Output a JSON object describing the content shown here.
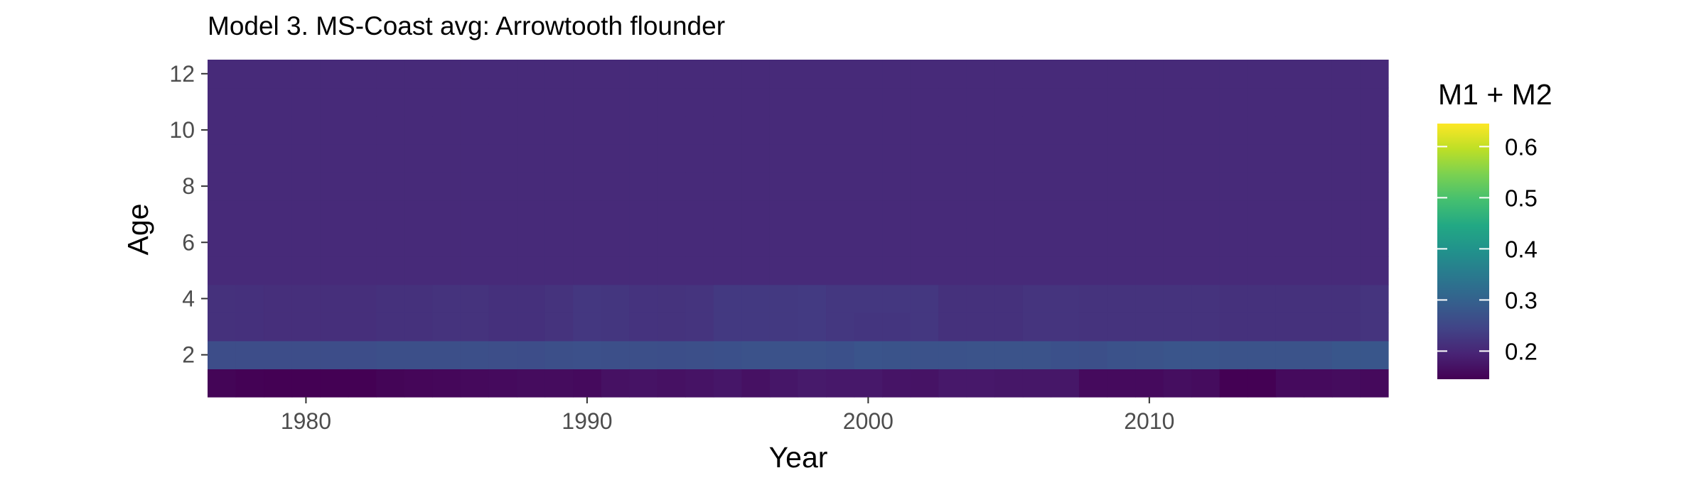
{
  "chart_data": {
    "type": "heatmap",
    "title": "Model 3. MS-Coast avg: Arrowtooth flounder",
    "xlabel": "Year",
    "ylabel": "Age",
    "x": [
      1977,
      1978,
      1979,
      1980,
      1981,
      1982,
      1983,
      1984,
      1985,
      1986,
      1987,
      1988,
      1989,
      1990,
      1991,
      1992,
      1993,
      1994,
      1995,
      1996,
      1997,
      1998,
      1999,
      2000,
      2001,
      2002,
      2003,
      2004,
      2005,
      2006,
      2007,
      2008,
      2009,
      2010,
      2011,
      2012,
      2013,
      2014,
      2015,
      2016,
      2017,
      2018
    ],
    "y": [
      1,
      2,
      3,
      4,
      5,
      6,
      7,
      8,
      9,
      10,
      11,
      12
    ],
    "xlim": [
      1976.5,
      2018.5
    ],
    "ylim": [
      0.5,
      12.5
    ],
    "x_ticks": [
      1980,
      1990,
      2000,
      2010
    ],
    "x_tick_labels": [
      "1980",
      "1990",
      "2000",
      "2010"
    ],
    "y_ticks": [
      2,
      4,
      6,
      8,
      10,
      12
    ],
    "y_tick_labels": [
      "2",
      "4",
      "6",
      "8",
      "10",
      "12"
    ],
    "age1": [
      0.15,
      0.147,
      0.143,
      0.145,
      0.142,
      0.143,
      0.15,
      0.152,
      0.154,
      0.157,
      0.158,
      0.16,
      0.16,
      0.158,
      0.168,
      0.17,
      0.168,
      0.17,
      0.175,
      0.168,
      0.175,
      0.18,
      0.178,
      0.178,
      0.172,
      0.17,
      0.178,
      0.178,
      0.176,
      0.176,
      0.176,
      0.158,
      0.158,
      0.158,
      0.163,
      0.16,
      0.145,
      0.145,
      0.158,
      0.158,
      0.16,
      0.157
    ],
    "age2": [
      0.262,
      0.262,
      0.262,
      0.262,
      0.262,
      0.262,
      0.265,
      0.265,
      0.265,
      0.265,
      0.263,
      0.262,
      0.265,
      0.267,
      0.265,
      0.265,
      0.264,
      0.265,
      0.268,
      0.27,
      0.27,
      0.27,
      0.268,
      0.275,
      0.273,
      0.27,
      0.27,
      0.272,
      0.272,
      0.272,
      0.268,
      0.265,
      0.27,
      0.272,
      0.276,
      0.276,
      0.272,
      0.272,
      0.272,
      0.272,
      0.278,
      0.278
    ],
    "age3": [
      0.215,
      0.214,
      0.212,
      0.212,
      0.212,
      0.212,
      0.215,
      0.215,
      0.218,
      0.218,
      0.214,
      0.214,
      0.218,
      0.225,
      0.223,
      0.219,
      0.218,
      0.22,
      0.228,
      0.228,
      0.228,
      0.23,
      0.225,
      0.222,
      0.222,
      0.225,
      0.215,
      0.215,
      0.215,
      0.22,
      0.22,
      0.218,
      0.218,
      0.218,
      0.218,
      0.218,
      0.215,
      0.215,
      0.215,
      0.215,
      0.215,
      0.22
    ],
    "age4": [
      0.215,
      0.214,
      0.212,
      0.212,
      0.212,
      0.212,
      0.215,
      0.215,
      0.218,
      0.218,
      0.214,
      0.214,
      0.218,
      0.225,
      0.223,
      0.219,
      0.218,
      0.22,
      0.228,
      0.228,
      0.228,
      0.23,
      0.225,
      0.225,
      0.225,
      0.225,
      0.215,
      0.215,
      0.215,
      0.22,
      0.22,
      0.218,
      0.218,
      0.218,
      0.218,
      0.218,
      0.215,
      0.215,
      0.215,
      0.215,
      0.215,
      0.22
    ],
    "age5plus": 0.205,
    "legend": {
      "title": "M1 + M2",
      "colormap": "viridis",
      "min": 0.145,
      "max": 0.645,
      "ticks": [
        0.2,
        0.3,
        0.4,
        0.5,
        0.6
      ],
      "tick_labels": [
        "0.2",
        "0.3",
        "0.4",
        "0.5",
        "0.6"
      ],
      "position": "right"
    }
  }
}
